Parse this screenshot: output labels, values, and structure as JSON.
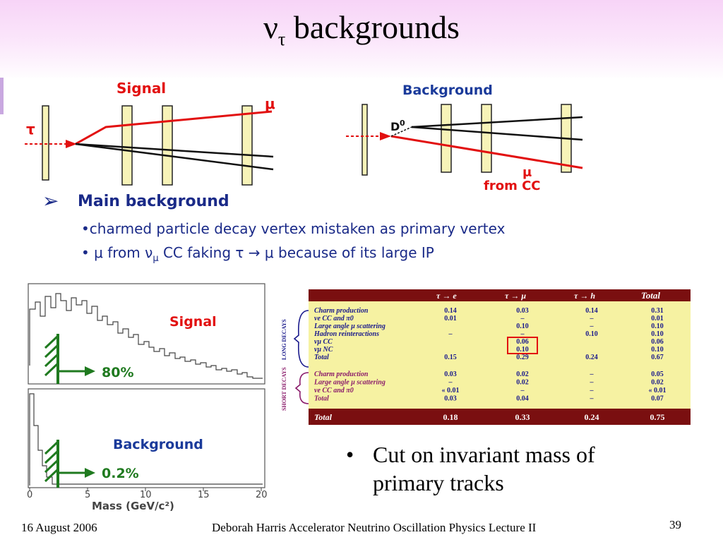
{
  "title": {
    "nu": "ν",
    "tau": "τ",
    "rest": " backgrounds"
  },
  "diagram": {
    "signal_label": "Signal",
    "signal_mu": "μ",
    "signal_tau": "τ",
    "background_label": "Background",
    "background_d0": "D",
    "background_d0_sup": "0",
    "background_mu": "μ",
    "background_from_cc": "from CC"
  },
  "main": {
    "arrow": "➢",
    "heading": "Main background",
    "bullet1": "•charmed particle decay vertex mistaken as primary vertex",
    "bullet2_pre": "•  μ from ν",
    "bullet2_sub": "μ",
    "bullet2_post": " CC faking τ → μ  because of its large IP"
  },
  "histogram": {
    "signal_label": "Signal",
    "signal_pct": "80%",
    "background_label": "Background",
    "background_pct": "0.2%",
    "xlabel": "Mass (GeV/c²)",
    "xticks": [
      "0",
      "5",
      "10",
      "15",
      "20"
    ]
  },
  "table": {
    "headers": [
      "τ → e",
      "τ → μ",
      "τ → h",
      "Total"
    ],
    "long_label": "LONG DECAYS",
    "short_label": "SHORT DECAYS",
    "long_rows": [
      {
        "label": "Charm production",
        "v": [
          "0.14",
          "0.03",
          "0.14",
          "0.31"
        ]
      },
      {
        "label": "νe CC and  π0",
        "v": [
          "0.01",
          "–",
          "–",
          "0.01"
        ]
      },
      {
        "label": "Large angle μ scattering",
        "v": [
          "",
          "0.10",
          "–",
          "0.10"
        ]
      },
      {
        "label": "Hadron reinteractions",
        "v": [
          "–",
          "–",
          "0.10",
          "0.10"
        ]
      },
      {
        "label": "νμ CC",
        "v": [
          "",
          "0.06",
          "",
          "0.06"
        ]
      },
      {
        "label": "νμ NC",
        "v": [
          "",
          "0.10",
          "",
          "0.10"
        ]
      },
      {
        "label": "Total",
        "v": [
          "0.15",
          "0.29",
          "0.24",
          "0.67"
        ]
      }
    ],
    "short_rows": [
      {
        "label": "Charm production",
        "v": [
          "0.03",
          "0.02",
          "–",
          "0.05"
        ]
      },
      {
        "label": "Large angle μ scattering",
        "v": [
          "–",
          "0.02",
          "–",
          "0.02"
        ]
      },
      {
        "label": "νe CC and  π0",
        "v": [
          "« 0.01",
          "–",
          "–",
          "« 0.01"
        ]
      },
      {
        "label": "Total",
        "v": [
          "0.03",
          "0.04",
          "–",
          "0.07"
        ]
      }
    ],
    "grand_total": {
      "label": "Total",
      "v": [
        "0.18",
        "0.33",
        "0.24",
        "0.75"
      ]
    },
    "colors": {
      "header_bg": "#7a0f10",
      "body_bg": "#f6f2a2",
      "row_text": "#1a1a8c",
      "section_text": "#8a1a6a"
    }
  },
  "cut_bullet": {
    "dot": "•",
    "text": "Cut on invariant mass of primary tracks"
  },
  "footer": {
    "date": "16 August 2006",
    "center": "Deborah Harris  Accelerator Neutrino Oscillation Physics Lecture II",
    "page": "39"
  }
}
